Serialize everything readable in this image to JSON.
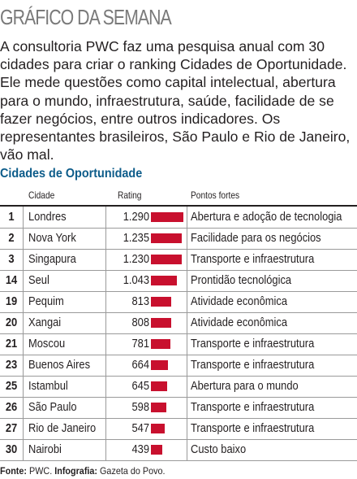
{
  "header": {
    "title": "GRÁFICO DA SEMANA"
  },
  "intro": "A consultoria PWC faz uma pesquisa anual com 30 cidades para criar o ranking Cidades de Oportunidade. Ele mede questões como capital intelectual, abertura para o mundo, infraestrutura, saúde, facilidade de se fazer negócios, entre outros indicadores. Os representantes brasileiros, São Paulo e Rio de Janeiro, vão mal.",
  "subtitle": "Cidades de Oportunidade",
  "columns": {
    "city": "Cidade",
    "rating": "Rating",
    "strengths": "Pontos fortes"
  },
  "rows": [
    {
      "rank": "1",
      "city": "Londres",
      "rating": "1.290",
      "strength": "Abertura e adoção de tecnologia"
    },
    {
      "rank": "2",
      "city": "Nova York",
      "rating": "1.235",
      "strength": "Facilidade para os negócios"
    },
    {
      "rank": "3",
      "city": "Singapura",
      "rating": "1.230",
      "strength": "Transporte e infraestrutura"
    },
    {
      "rank": "14",
      "city": "Seul",
      "rating": "1.043",
      "strength": "Prontidão tecnológica"
    },
    {
      "rank": "19",
      "city": "Pequim",
      "rating": "813",
      "strength": "Atividade econômica"
    },
    {
      "rank": "20",
      "city": "Xangai",
      "rating": "808",
      "strength": "Atividade econômica"
    },
    {
      "rank": "21",
      "city": "Moscou",
      "rating": "781",
      "strength": "Transporte e infraestrutura"
    },
    {
      "rank": "23",
      "city": "Buenos Aires",
      "rating": "664",
      "strength": "Transporte e infraestrutura"
    },
    {
      "rank": "25",
      "city": "Istambul",
      "rating": "645",
      "strength": "Abertura para o mundo"
    },
    {
      "rank": "26",
      "city": "São Paulo",
      "rating": "598",
      "strength": "Transporte e infraestrutura"
    },
    {
      "rank": "27",
      "city": "Rio de Janeiro",
      "rating": "547",
      "strength": "Transporte e infraestrutura"
    },
    {
      "rank": "30",
      "city": "Nairobi",
      "rating": "439",
      "strength": "Custo baixo"
    }
  ],
  "source": {
    "label1": "Fonte:",
    "text1": "PWC.",
    "label2": "Infografia:",
    "text2": "Gazeta do Povo."
  },
  "colors": {
    "bar": "#c8102e",
    "subtitle": "#0d5c8a",
    "heading": "#7a7a7a"
  },
  "chart_data": {
    "type": "bar",
    "title": "Cidades de Oportunidade",
    "categories": [
      "Londres",
      "Nova York",
      "Singapura",
      "Seul",
      "Pequim",
      "Xangai",
      "Moscou",
      "Buenos Aires",
      "Istambul",
      "São Paulo",
      "Rio de Janeiro",
      "Nairobi"
    ],
    "values": [
      1290,
      1235,
      1230,
      1043,
      813,
      808,
      781,
      664,
      645,
      598,
      547,
      439
    ],
    "orientation": "horizontal",
    "xlim": [
      0,
      1290
    ]
  }
}
